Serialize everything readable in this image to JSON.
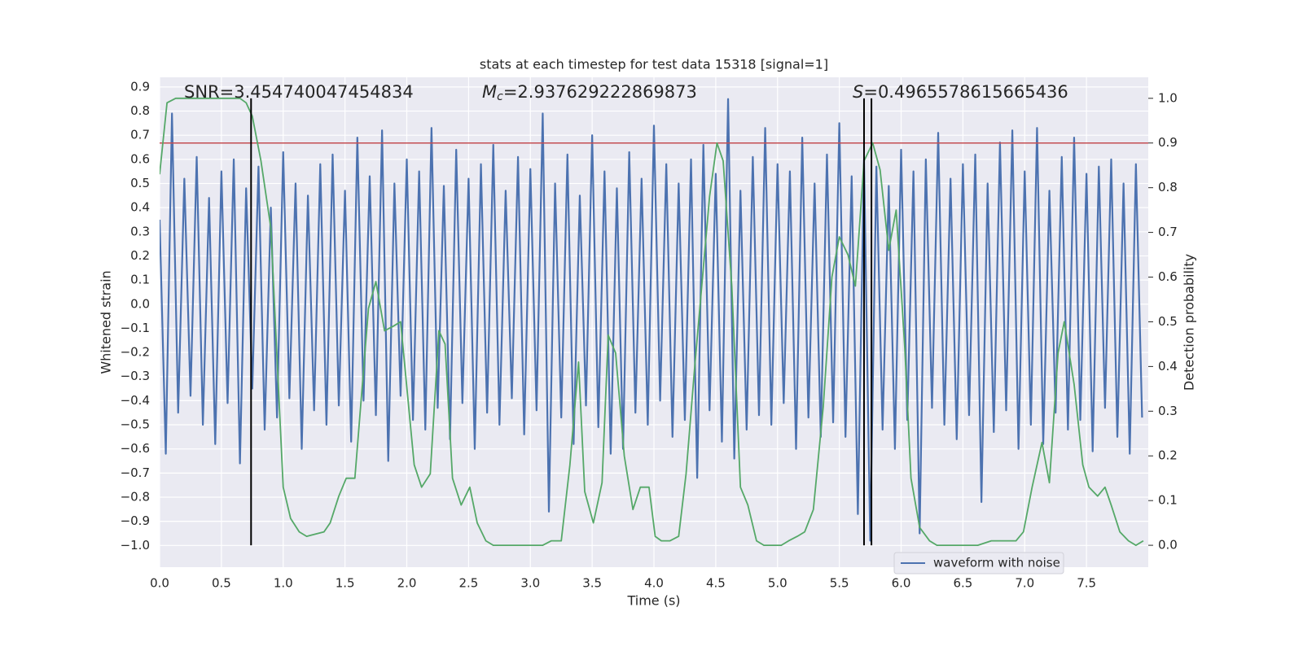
{
  "chart_data": {
    "type": "line",
    "title": "stats at each timestep for test data 15318 [signal=1]",
    "xlabel": "Time (s)",
    "ylabel": "Whitened strain",
    "y2label": "Detection probability",
    "annotations": [
      {
        "text": "SNR=3.454740047454834"
      },
      {
        "symbol": "M",
        "subscript": "c",
        "text": "=2.937629222869873"
      },
      {
        "symbol": "S",
        "text": "=0.4965578615665436"
      }
    ],
    "xlim": [
      0,
      8.0
    ],
    "ylim": [
      -1.09,
      0.94
    ],
    "y2lim": [
      -0.049,
      1.047
    ],
    "xticks": [
      {
        "value": 0,
        "label": "0.0"
      },
      0.5,
      {
        "value": 1,
        "label": "1.0"
      },
      1.5,
      {
        "value": 2,
        "label": "2.0"
      },
      2.5,
      {
        "value": 3,
        "label": "3.0"
      },
      3.5,
      {
        "value": 4,
        "label": "4.0"
      },
      4.5,
      {
        "value": 5,
        "label": "5.0"
      },
      5.5,
      {
        "value": 6,
        "label": "6.0"
      },
      6.5,
      {
        "value": 7,
        "label": "7.0"
      },
      7.5
    ],
    "yticks": [
      {
        "value": -1.0,
        "label": "−1.0"
      },
      {
        "value": -0.9,
        "label": "−0.9"
      },
      {
        "value": -0.8,
        "label": "−0.8"
      },
      {
        "value": -0.7,
        "label": "−0.7"
      },
      {
        "value": -0.6,
        "label": "−0.6"
      },
      {
        "value": -0.5,
        "label": "−0.5"
      },
      {
        "value": -0.4,
        "label": "−0.4"
      },
      {
        "value": -0.3,
        "label": "−0.3"
      },
      {
        "value": -0.2,
        "label": "−0.2"
      },
      {
        "value": -0.1,
        "label": "−0.1"
      },
      {
        "value": 0,
        "label": "0.0"
      },
      0.1,
      0.2,
      0.3,
      0.4,
      0.5,
      0.6,
      0.7,
      0.8,
      0.9
    ],
    "y2ticks": [
      {
        "value": 0,
        "label": "0.0"
      },
      0.1,
      0.2,
      0.3,
      0.4,
      0.5,
      0.6,
      0.7,
      0.8,
      0.9,
      {
        "value": 1,
        "label": "1.0"
      }
    ],
    "grid": true,
    "legend": "lower right",
    "series": [
      {
        "name": "waveform with noise",
        "color": "#4c72b0",
        "x": [
          0.0,
          0.05,
          0.1,
          0.15,
          0.2,
          0.25,
          0.3,
          0.35,
          0.4,
          0.45,
          0.5,
          0.55,
          0.6,
          0.65,
          0.7,
          0.75,
          0.8,
          0.85,
          0.9,
          0.95,
          1.0,
          1.05,
          1.1,
          1.15,
          1.2,
          1.25,
          1.3,
          1.35,
          1.4,
          1.45,
          1.5,
          1.55,
          1.6,
          1.65,
          1.7,
          1.75,
          1.8,
          1.85,
          1.9,
          1.95,
          2.0,
          2.05,
          2.1,
          2.15,
          2.2,
          2.25,
          2.3,
          2.35,
          2.4,
          2.45,
          2.5,
          2.55,
          2.6,
          2.65,
          2.7,
          2.75,
          2.8,
          2.85,
          2.9,
          2.95,
          3.0,
          3.05,
          3.1,
          3.15,
          3.2,
          3.25,
          3.3,
          3.35,
          3.4,
          3.45,
          3.5,
          3.55,
          3.6,
          3.65,
          3.7,
          3.75,
          3.8,
          3.85,
          3.9,
          3.95,
          4.0,
          4.05,
          4.1,
          4.15,
          4.2,
          4.25,
          4.3,
          4.35,
          4.4,
          4.45,
          4.5,
          4.55,
          4.6,
          4.65,
          4.7,
          4.75,
          4.8,
          4.85,
          4.9,
          4.95,
          5.0,
          5.05,
          5.1,
          5.15,
          5.2,
          5.25,
          5.3,
          5.35,
          5.4,
          5.45,
          5.5,
          5.55,
          5.6,
          5.65,
          5.7,
          5.75,
          5.8,
          5.85,
          5.9,
          5.95,
          6.0,
          6.05,
          6.1,
          6.15,
          6.2,
          6.25,
          6.3,
          6.35,
          6.4,
          6.45,
          6.5,
          6.55,
          6.6,
          6.65,
          6.7,
          6.75,
          6.8,
          6.85,
          6.9,
          6.95,
          7.0,
          7.05,
          7.1,
          7.15,
          7.2,
          7.25,
          7.3,
          7.35,
          7.4,
          7.45,
          7.5,
          7.55,
          7.6,
          7.65,
          7.7,
          7.75,
          7.8,
          7.85,
          7.9,
          7.95
        ],
        "values": [
          0.35,
          -0.62,
          0.79,
          -0.45,
          0.52,
          -0.38,
          0.61,
          -0.5,
          0.44,
          -0.58,
          0.55,
          -0.41,
          0.6,
          -0.66,
          0.48,
          -0.35,
          0.57,
          -0.52,
          0.4,
          -0.47,
          0.63,
          -0.39,
          0.5,
          -0.6,
          0.45,
          -0.44,
          0.58,
          -0.5,
          0.62,
          -0.42,
          0.47,
          -0.57,
          0.69,
          -0.4,
          0.53,
          -0.46,
          0.72,
          -0.65,
          0.5,
          -0.38,
          0.6,
          -0.48,
          0.55,
          -0.52,
          0.73,
          -0.43,
          0.49,
          -0.56,
          0.64,
          -0.41,
          0.52,
          -0.6,
          0.58,
          -0.45,
          0.66,
          -0.5,
          0.47,
          -0.39,
          0.61,
          -0.54,
          0.56,
          -0.44,
          0.79,
          -0.86,
          0.5,
          -0.47,
          0.62,
          -0.58,
          0.45,
          -0.42,
          0.7,
          -0.51,
          0.55,
          -0.62,
          0.48,
          -0.6,
          0.63,
          -0.45,
          0.52,
          -0.5,
          0.74,
          -0.4,
          0.58,
          -0.55,
          0.5,
          -0.48,
          0.6,
          -0.72,
          0.66,
          -0.44,
          0.54,
          -0.57,
          0.85,
          -0.64,
          0.47,
          -0.52,
          0.61,
          -0.46,
          0.73,
          -0.5,
          0.58,
          -0.41,
          0.55,
          -0.6,
          0.69,
          -0.47,
          0.5,
          -0.55,
          0.62,
          -0.49,
          0.75,
          -0.55,
          0.53,
          -0.87,
          0.6,
          -0.98,
          0.57,
          -0.52,
          0.49,
          -0.6,
          0.64,
          -0.48,
          0.55,
          -0.95,
          0.6,
          -0.43,
          0.71,
          -0.5,
          0.52,
          -0.56,
          0.58,
          -0.46,
          0.62,
          -0.82,
          0.5,
          -0.53,
          0.67,
          -0.44,
          0.72,
          -0.6,
          0.55,
          -0.5,
          0.73,
          -0.58,
          0.47,
          -0.45,
          0.61,
          -0.52,
          0.69,
          -0.48,
          0.54,
          -0.61,
          0.57,
          -0.43,
          0.6,
          -0.55,
          0.5,
          -0.62,
          0.58,
          -0.47
        ]
      },
      {
        "color": "#55a868",
        "axis": "y2",
        "x": [
          0.0,
          0.06,
          0.13,
          0.22,
          0.65,
          0.7,
          0.75,
          0.82,
          0.9,
          1.0,
          1.06,
          1.13,
          1.19,
          1.33,
          1.38,
          1.45,
          1.51,
          1.58,
          1.69,
          1.75,
          1.82,
          1.89,
          1.95,
          2.06,
          2.12,
          2.19,
          2.26,
          2.31,
          2.37,
          2.44,
          2.51,
          2.57,
          2.64,
          2.7,
          2.97,
          3.1,
          3.17,
          3.25,
          3.32,
          3.39,
          3.44,
          3.51,
          3.58,
          3.63,
          3.69,
          3.76,
          3.83,
          3.89,
          3.96,
          4.01,
          4.06,
          4.13,
          4.2,
          4.26,
          4.33,
          4.45,
          4.51,
          4.56,
          4.63,
          4.7,
          4.76,
          4.83,
          4.89,
          5.03,
          5.09,
          5.16,
          5.22,
          5.29,
          5.37,
          5.44,
          5.5,
          5.57,
          5.63,
          5.7,
          5.77,
          5.83,
          5.9,
          5.96,
          6.03,
          6.08,
          6.15,
          6.23,
          6.29,
          6.49,
          6.62,
          6.73,
          6.82,
          6.93,
          6.99,
          7.06,
          7.14,
          7.2,
          7.27,
          7.32,
          7.4,
          7.47,
          7.52,
          7.59,
          7.65,
          7.7,
          7.77,
          7.84,
          7.9,
          7.96
        ],
        "values": [
          0.83,
          0.99,
          1.0,
          1.0,
          1.0,
          0.99,
          0.96,
          0.86,
          0.71,
          0.13,
          0.06,
          0.03,
          0.02,
          0.03,
          0.05,
          0.11,
          0.15,
          0.15,
          0.53,
          0.59,
          0.48,
          0.49,
          0.5,
          0.18,
          0.13,
          0.16,
          0.48,
          0.45,
          0.15,
          0.09,
          0.13,
          0.05,
          0.01,
          0.0,
          0.0,
          0.0,
          0.01,
          0.01,
          0.18,
          0.41,
          0.12,
          0.05,
          0.14,
          0.47,
          0.43,
          0.2,
          0.08,
          0.13,
          0.13,
          0.02,
          0.01,
          0.01,
          0.02,
          0.16,
          0.4,
          0.78,
          0.9,
          0.86,
          0.58,
          0.13,
          0.09,
          0.01,
          0.0,
          0.0,
          0.01,
          0.02,
          0.03,
          0.08,
          0.31,
          0.6,
          0.69,
          0.65,
          0.58,
          0.86,
          0.9,
          0.84,
          0.66,
          0.75,
          0.44,
          0.15,
          0.04,
          0.01,
          0.0,
          0.0,
          0.0,
          0.01,
          0.01,
          0.01,
          0.03,
          0.13,
          0.23,
          0.14,
          0.43,
          0.5,
          0.36,
          0.18,
          0.13,
          0.11,
          0.13,
          0.09,
          0.03,
          0.01,
          0.0,
          0.01
        ]
      }
    ],
    "hlines": [
      {
        "y": 0.9,
        "axis": "y2",
        "color": "#c44e52"
      }
    ],
    "vlines": {
      "x": [
        0.74,
        5.7,
        5.76
      ],
      "ymin": 0,
      "ymax": 1,
      "axis": "y2",
      "color": "#000000"
    }
  }
}
